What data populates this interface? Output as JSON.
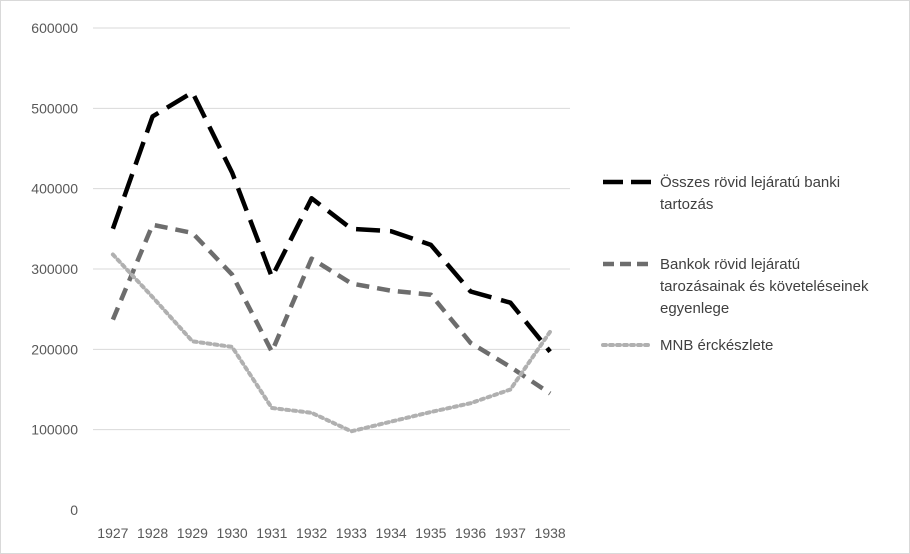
{
  "chart_data": {
    "type": "line",
    "title": "",
    "xlabel": "",
    "ylabel": "",
    "categories": [
      "1927",
      "1928",
      "1929",
      "1930",
      "1931",
      "1932",
      "1933",
      "1934",
      "1935",
      "1936",
      "1937",
      "1938"
    ],
    "ylim": [
      0,
      600000
    ],
    "yticks": [
      0,
      100000,
      200000,
      300000,
      400000,
      500000,
      600000
    ],
    "ytick_labels": [
      "0",
      "100000",
      "200000",
      "300000",
      "400000",
      "500000",
      "600000"
    ],
    "grid": true,
    "legend_position": "right",
    "series": [
      {
        "name": "Összes rövid lejáratú banki tartozás",
        "name_lines": [
          "Összes rövid lejáratú banki",
          "tartozás"
        ],
        "style": "long-dash",
        "color": "#000000",
        "values": [
          350000,
          490000,
          520000,
          420000,
          290000,
          388000,
          350000,
          347000,
          330000,
          272000,
          258000,
          197000
        ]
      },
      {
        "name": "Bankok rövid lejáratú tarozásainak és követeléseinek egyenlege",
        "name_lines": [
          "Bankok rövid lejáratú",
          "tarozásainak és követeléseinek",
          "egyenlege"
        ],
        "style": "dash",
        "color": "#6d6d6d",
        "values": [
          237000,
          355000,
          345000,
          293000,
          197000,
          313000,
          282000,
          273000,
          268000,
          208000,
          178000,
          145000
        ]
      },
      {
        "name": "MNB érckészlete",
        "name_lines": [
          "MNB érckészlete"
        ],
        "style": "dot",
        "color": "#b0b0b0",
        "values": [
          318000,
          265000,
          210000,
          203000,
          127000,
          121000,
          98000,
          110000,
          122000,
          133000,
          150000,
          222000
        ]
      }
    ]
  }
}
